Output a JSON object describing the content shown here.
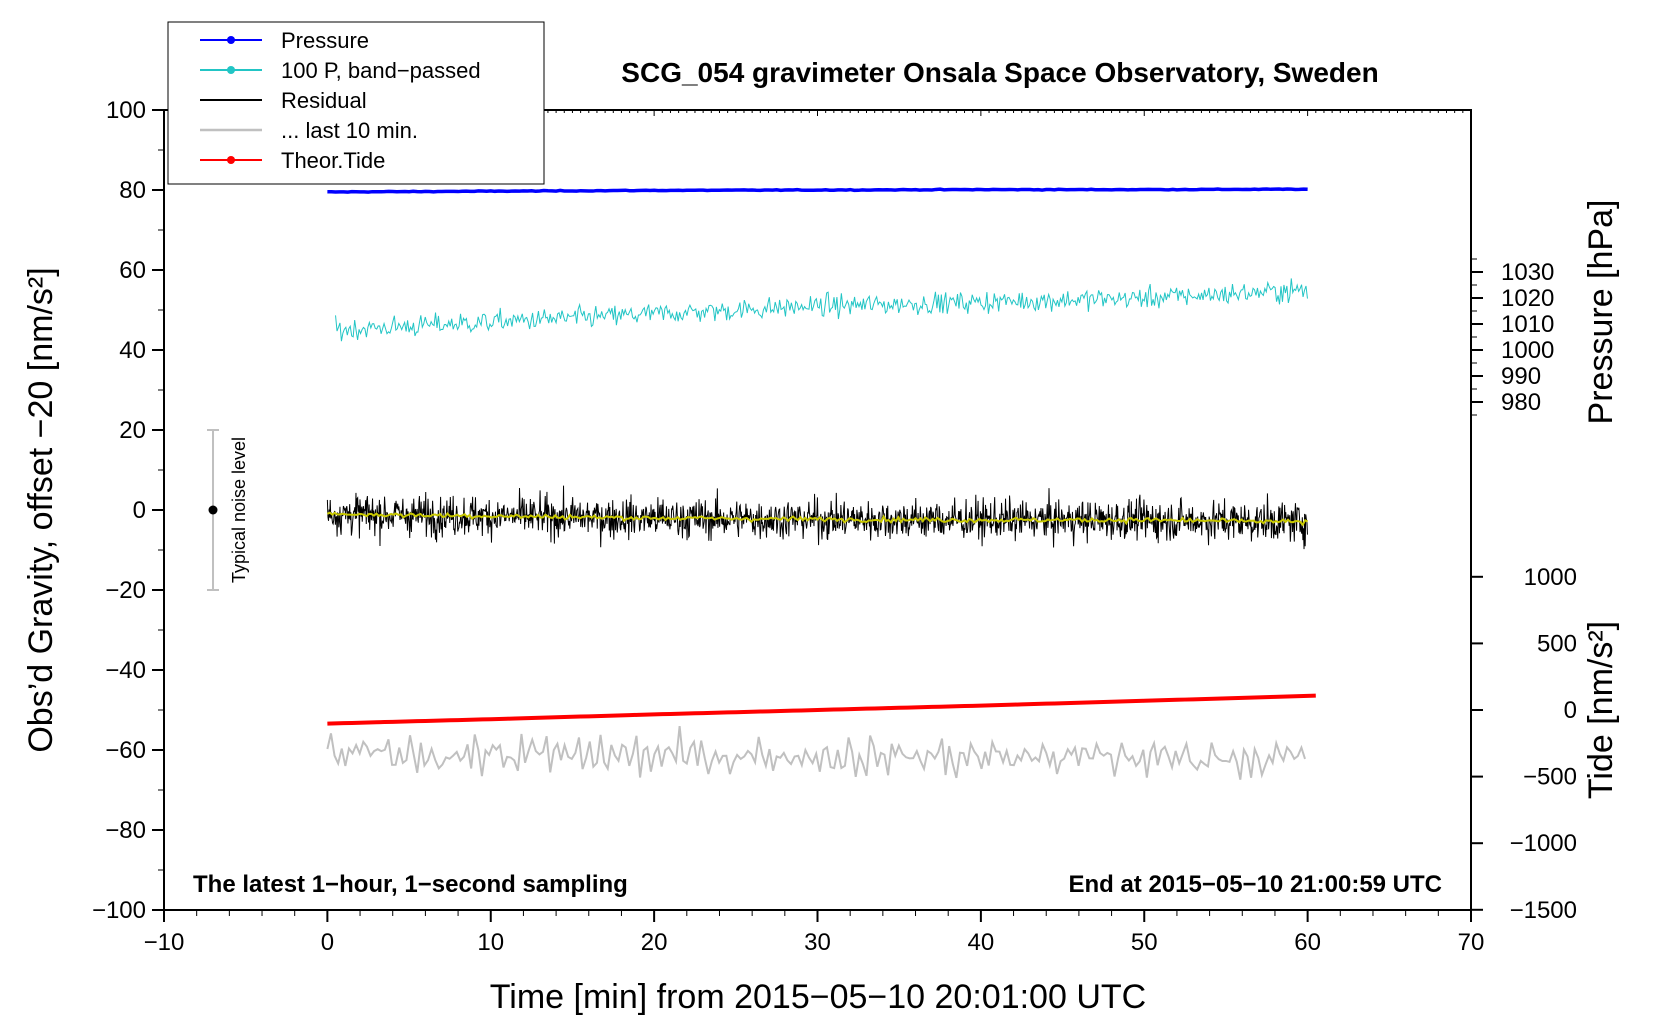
{
  "chart_data": {
    "type": "line",
    "title": "SCG_054 gravimeter Onsala Space Observatory, Sweden",
    "xlabel": "Time [min] from 2015−05−10 20:01:00 UTC",
    "ylabel": "Obs’d Gravity, offset −20 [nm/s²]",
    "y2label": "Pressure [hPa]",
    "y3label": "Tide [nm/s²]",
    "xlim": [
      -10,
      70
    ],
    "ylim": [
      -100,
      100
    ],
    "xticks": [
      -10,
      0,
      10,
      20,
      30,
      40,
      50,
      60,
      70
    ],
    "xtick_labels": [
      "−10",
      "0",
      "10",
      "20",
      "30",
      "40",
      "50",
      "60",
      "70"
    ],
    "yticks": [
      100,
      80,
      60,
      40,
      20,
      0,
      -20,
      -40,
      -60,
      -80,
      -100
    ],
    "ytick_labels": [
      "100",
      "80",
      "60",
      "40",
      "20",
      "0",
      "−20",
      "−40",
      "−60",
      "−80",
      "−100"
    ],
    "pressure_axis": {
      "ticks": [
        1030,
        1020,
        1010,
        1000,
        990,
        980
      ],
      "tick_labels": [
        "1030",
        "1020",
        "1010",
        "1000",
        "990",
        "980"
      ],
      "ref_value": 1000,
      "ref_y": 40,
      "scale_per_unit": 0.65
    },
    "tide_axis": {
      "ticks": [
        1000,
        500,
        0,
        -500,
        -1000,
        -1500
      ],
      "tick_labels": [
        "1000",
        "500",
        "0",
        "−500",
        "−1000",
        "−1500"
      ],
      "ref_value": 0,
      "ref_y": -50,
      "scale_per_unit": 0.0333
    },
    "grid": false,
    "legend_position": "top-left",
    "legend": [
      {
        "label": "Pressure",
        "color": "#0000ff",
        "marker": true
      },
      {
        "label": "100 P, band−passed",
        "color": "#22c5c5",
        "marker": true
      },
      {
        "label": "Residual",
        "color": "#000000",
        "marker": false
      },
      {
        "label": "... last 10 min.",
        "color": "#c0c0c0",
        "marker": false
      },
      {
        "label": "Theor.Tide",
        "color": "#ff0000",
        "marker": true
      }
    ],
    "series": [
      {
        "name": "Pressure",
        "color": "#0000ff",
        "x": [
          0,
          10,
          20,
          30,
          40,
          50,
          60
        ],
        "y": [
          79.5,
          79.7,
          79.9,
          80.0,
          80.1,
          80.1,
          80.2
        ]
      },
      {
        "name": "100 P, band−passed",
        "color": "#22c5c5",
        "x": [
          0.5,
          10,
          20,
          30,
          40,
          50,
          60
        ],
        "y": [
          45,
          47,
          49,
          51,
          52,
          53,
          55
        ],
        "noise_amplitude": 3
      },
      {
        "name": "Residual",
        "color": "#000000",
        "x": [
          0,
          10,
          20,
          30,
          40,
          50,
          60
        ],
        "y": [
          -1,
          -1.5,
          -2,
          -2.3,
          -2.5,
          -2.5,
          -3
        ],
        "noise_amplitude": 6
      },
      {
        "name": "... last 10 min.",
        "color": "#c0c0c0",
        "x": [
          0,
          60
        ],
        "y": [
          -61,
          -62
        ],
        "noise_amplitude": 6
      },
      {
        "name": "Theor.Tide",
        "color": "#ff0000",
        "x": [
          0,
          10,
          20,
          30,
          40,
          50,
          60.5
        ],
        "y": [
          -53.4,
          -52.3,
          -51.1,
          -50.0,
          -48.9,
          -47.7,
          -46.4
        ]
      }
    ],
    "smoothed_residual_color": "#c8c800",
    "noise_bar": {
      "x": -7,
      "center": 0,
      "half_range": 20,
      "label": "Typical noise level"
    },
    "annotations": {
      "left": "The latest 1−hour, 1−second sampling",
      "right": "End at 2015−05−10 21:00:59 UTC"
    }
  }
}
